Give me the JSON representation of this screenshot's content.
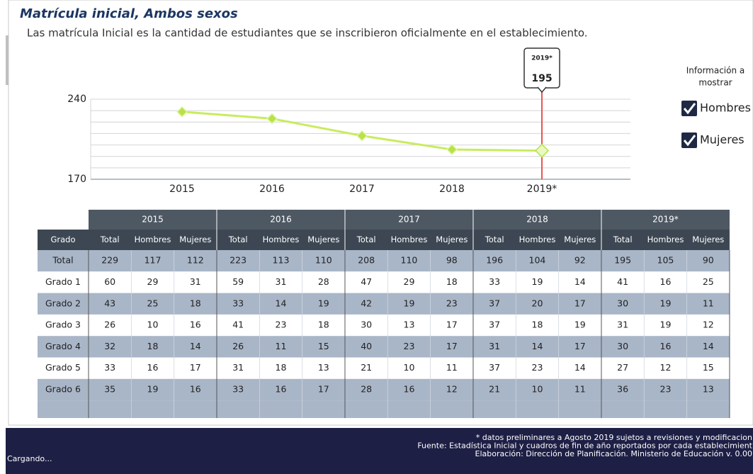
{
  "header": {
    "title": "Matrícula inicial, Ambos sexos",
    "subtitle": "Las matrícula Inicial es la cantidad de estudiantes que se inscribieron oficialmente en el establecimiento."
  },
  "chart_data": {
    "type": "line",
    "categories": [
      "2015",
      "2016",
      "2017",
      "2018",
      "2019*"
    ],
    "values": [
      229,
      223,
      208,
      196,
      195
    ],
    "color": "#c8ec5e",
    "ylim": [
      170,
      240
    ],
    "yticks": [
      170,
      240
    ],
    "ygrid": [
      180,
      190,
      200,
      210,
      220,
      230
    ],
    "grid": true,
    "highlight_index": 4,
    "highlight_color": "#e8554e"
  },
  "legend": {
    "title": [
      "Información a",
      "mostrar"
    ],
    "options": [
      "Hombres",
      "Mujeres"
    ]
  },
  "table": {
    "corner": "Grado",
    "columns": [
      "Total",
      "Hombres",
      "Mujeres"
    ],
    "rows": [
      [
        "Total",
        229,
        117,
        112,
        223,
        113,
        110,
        208,
        110,
        98,
        196,
        104,
        92,
        195,
        105,
        90
      ],
      [
        "Grado 1",
        60,
        29,
        31,
        59,
        31,
        28,
        47,
        29,
        18,
        33,
        19,
        14,
        41,
        16,
        25
      ],
      [
        "Grado 2",
        43,
        25,
        18,
        33,
        14,
        19,
        42,
        19,
        23,
        37,
        20,
        17,
        30,
        19,
        11
      ],
      [
        "Grado 3",
        26,
        10,
        16,
        41,
        23,
        18,
        30,
        13,
        17,
        37,
        18,
        19,
        31,
        19,
        12
      ],
      [
        "Grado 4",
        32,
        18,
        14,
        26,
        11,
        15,
        40,
        23,
        17,
        31,
        14,
        17,
        30,
        16,
        14
      ],
      [
        "Grado 5",
        33,
        16,
        17,
        31,
        18,
        13,
        21,
        10,
        11,
        37,
        23,
        14,
        27,
        12,
        15
      ],
      [
        "Grado 6",
        35,
        19,
        16,
        33,
        16,
        17,
        28,
        16,
        12,
        21,
        10,
        11,
        36,
        23,
        13
      ]
    ]
  },
  "footer": {
    "lines": [
      "*  datos preliminares a Agosto 2019 sujetos a revisiones y modificacion",
      "Fuente:  Estadística Inicial y cuadros de fin de año reportados por cada establecimient",
      "Elaboración: Dirección de Planificación. Ministerio de Educación v. 0.00"
    ],
    "status": "Cargando..."
  }
}
